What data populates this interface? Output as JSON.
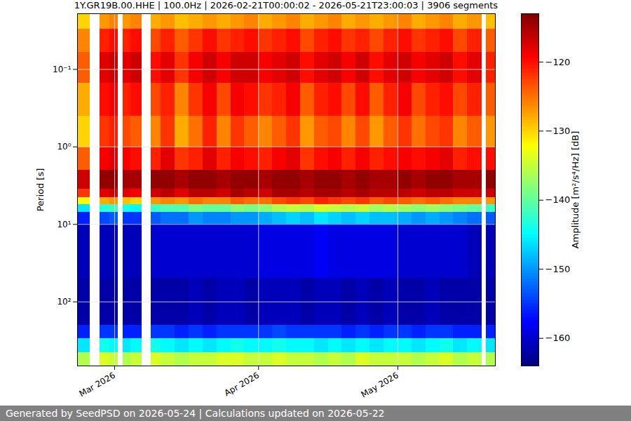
{
  "chart_data": {
    "type": "heatmap",
    "title": "1Y.GR19B.00.HHE | 100.0Hz | 2026-02-21T00:00:02 - 2026-05-21T23:00:03 | 3906 segments",
    "caption": "Generated by SeedPSD on 2026-05-24 | Calculations updated on 2026-05-22",
    "ylabel": "Period [s]",
    "log": "y",
    "grid": true,
    "xlim": [
      "2026-02-21T00:00:00Z",
      "2026-05-22T00:00:00Z"
    ],
    "xticks": [
      {
        "value": "2026-03-01T00:00:00Z",
        "label": "Mar 2026"
      },
      {
        "value": "2026-04-01T00:00:00Z",
        "label": "Apr 2026"
      },
      {
        "value": "2026-05-01T00:00:00Z",
        "label": "May 2026"
      }
    ],
    "ylim": [
      0.0191,
      671
    ],
    "yticks": [
      {
        "value": 0.1,
        "label": "10⁻¹"
      },
      {
        "value": 1,
        "label": "10⁰"
      },
      {
        "value": 10,
        "label": "10¹"
      },
      {
        "value": 100,
        "label": "10²"
      }
    ],
    "x_edges": [
      "2026-02-21T00:00:00Z",
      "2026-02-23T16:00:00Z",
      "2026-02-25T20:00:00Z",
      "2026-02-28T00:00:00Z",
      "2026-03-01T20:00:00Z",
      "2026-03-02T20:00:00Z",
      "2026-03-04T12:00:00Z",
      "2026-03-06T22:00:00Z",
      "2026-03-08T22:00:00Z",
      "2026-03-11T00:00:00Z",
      "2026-03-14T00:00:00Z",
      "2026-03-17T00:00:00Z",
      "2026-03-20T00:00:00Z",
      "2026-03-23T00:00:00Z",
      "2026-03-26T00:00:00Z",
      "2026-03-29T00:00:00Z",
      "2026-04-01T00:00:00Z",
      "2026-04-04T00:00:00Z",
      "2026-04-07T00:00:00Z",
      "2026-04-10T00:00:00Z",
      "2026-04-13T00:00:00Z",
      "2026-04-16T00:00:00Z",
      "2026-04-19T00:00:00Z",
      "2026-04-22T00:00:00Z",
      "2026-04-25T00:00:00Z",
      "2026-04-28T00:00:00Z",
      "2026-05-01T00:00:00Z",
      "2026-05-04T00:00:00Z",
      "2026-05-07T00:00:00Z",
      "2026-05-10T00:00:00Z",
      "2026-05-13T00:00:00Z",
      "2026-05-16T00:00:00Z",
      "2026-05-19T04:00:00Z",
      "2026-05-20T00:00:00Z",
      "2026-05-22T00:00:00Z"
    ],
    "y_edges": [
      0.0191,
      0.03,
      0.06,
      0.15,
      0.4,
      1.0,
      2.0,
      3.5,
      4.5,
      5.5,
      7,
      10,
      50,
      200,
      300,
      450,
      671
    ],
    "values": [
      [
        -130,
        -126,
        -124,
        -128,
        -130,
        -124,
        -117,
        -122,
        -132,
        -146,
        -156,
        -161,
        -162,
        -156,
        -146,
        -136
      ],
      null,
      [
        -127,
        -121,
        -118,
        -120,
        -122,
        -119,
        -114,
        -118,
        -128,
        -143,
        -154,
        -161,
        -162,
        -155,
        -144,
        -134
      ],
      [
        -126,
        -120,
        -117,
        -119,
        -121,
        -118,
        -114,
        -117,
        -127,
        -142,
        -153,
        -161,
        -162,
        -155,
        -145,
        -135
      ],
      null,
      [
        -127,
        -121,
        -118,
        -121,
        -123,
        -119,
        -115,
        -118,
        -129,
        -144,
        -155,
        -161,
        -162,
        -156,
        -146,
        -136
      ],
      [
        -126,
        -120,
        -117,
        -120,
        -124,
        -120,
        -115,
        -119,
        -130,
        -145,
        -155,
        -161,
        -162,
        -156,
        -145,
        -135
      ],
      null,
      [
        -128,
        -123,
        -120,
        -123,
        -126,
        -121,
        -114,
        -117,
        -127,
        -142,
        -153,
        -160,
        -162,
        -155,
        -144,
        -134
      ],
      [
        -127,
        -121,
        -118,
        -121,
        -122,
        -118,
        -114,
        -116,
        -126,
        -141,
        -152,
        -160,
        -162,
        -155,
        -145,
        -135
      ],
      [
        -129,
        -124,
        -122,
        -126,
        -128,
        -122,
        -115,
        -118,
        -127,
        -141,
        -152,
        -160,
        -162,
        -156,
        -146,
        -136
      ],
      [
        -128,
        -122,
        -119,
        -122,
        -125,
        -121,
        -114,
        -116,
        -125,
        -139,
        -150,
        -160,
        -161,
        -155,
        -145,
        -135
      ],
      [
        -127,
        -120,
        -117,
        -119,
        -121,
        -118,
        -114,
        -116,
        -126,
        -140,
        -151,
        -160,
        -162,
        -156,
        -146,
        -135
      ],
      [
        -128,
        -122,
        -119,
        -123,
        -126,
        -121,
        -115,
        -117,
        -126,
        -140,
        -151,
        -160,
        -161,
        -155,
        -145,
        -134
      ],
      [
        -127,
        -121,
        -117,
        -119,
        -122,
        -119,
        -114,
        -115,
        -124,
        -138,
        -150,
        -160,
        -161,
        -155,
        -144,
        -134
      ],
      [
        -126,
        -120,
        -117,
        -120,
        -124,
        -120,
        -114,
        -116,
        -125,
        -139,
        -150,
        -160,
        -162,
        -155,
        -145,
        -135
      ],
      [
        -128,
        -122,
        -119,
        -122,
        -126,
        -121,
        -115,
        -117,
        -125,
        -138,
        -149,
        -159,
        -161,
        -155,
        -145,
        -135
      ],
      [
        -127,
        -121,
        -118,
        -121,
        -124,
        -119,
        -114,
        -115,
        -123,
        -136,
        -148,
        -159,
        -161,
        -154,
        -144,
        -134
      ],
      [
        -126,
        -120,
        -117,
        -119,
        -122,
        -118,
        -114,
        -115,
        -122,
        -135,
        -147,
        -159,
        -161,
        -155,
        -145,
        -135
      ],
      [
        -128,
        -123,
        -120,
        -124,
        -127,
        -122,
        -115,
        -116,
        -123,
        -136,
        -148,
        -159,
        -162,
        -155,
        -145,
        -135
      ],
      [
        -127,
        -121,
        -118,
        -121,
        -124,
        -120,
        -114,
        -115,
        -121,
        -134,
        -146,
        -158,
        -161,
        -155,
        -146,
        -136
      ],
      [
        -126,
        -120,
        -117,
        -120,
        -123,
        -119,
        -114,
        -115,
        -122,
        -135,
        -147,
        -159,
        -161,
        -155,
        -145,
        -135
      ],
      [
        -128,
        -122,
        -119,
        -123,
        -126,
        -121,
        -115,
        -116,
        -123,
        -136,
        -148,
        -159,
        -162,
        -156,
        -146,
        -136
      ],
      [
        -127,
        -121,
        -117,
        -120,
        -123,
        -119,
        -114,
        -115,
        -122,
        -135,
        -147,
        -159,
        -161,
        -155,
        -145,
        -134
      ],
      [
        -128,
        -123,
        -120,
        -124,
        -127,
        -121,
        -115,
        -116,
        -124,
        -137,
        -148,
        -159,
        -162,
        -156,
        -146,
        -135
      ],
      [
        -127,
        -121,
        -118,
        -121,
        -124,
        -120,
        -115,
        -116,
        -123,
        -136,
        -148,
        -159,
        -161,
        -155,
        -145,
        -135
      ],
      [
        -126,
        -120,
        -117,
        -119,
        -122,
        -119,
        -114,
        -116,
        -124,
        -137,
        -149,
        -160,
        -162,
        -155,
        -145,
        -135
      ],
      [
        -128,
        -122,
        -119,
        -123,
        -125,
        -120,
        -115,
        -117,
        -125,
        -138,
        -150,
        -160,
        -162,
        -156,
        -146,
        -136
      ],
      [
        -127,
        -121,
        -118,
        -121,
        -123,
        -119,
        -114,
        -116,
        -124,
        -137,
        -149,
        -160,
        -161,
        -155,
        -145,
        -135
      ],
      [
        -126,
        -120,
        -117,
        -120,
        -122,
        -118,
        -114,
        -116,
        -125,
        -138,
        -150,
        -160,
        -162,
        -155,
        -144,
        -134
      ],
      [
        -128,
        -123,
        -120,
        -123,
        -126,
        -121,
        -115,
        -117,
        -126,
        -139,
        -151,
        -160,
        -162,
        -156,
        -146,
        -136
      ],
      [
        -127,
        -121,
        -118,
        -121,
        -124,
        -120,
        -115,
        -117,
        -126,
        -140,
        -152,
        -161,
        -162,
        -156,
        -145,
        -135
      ],
      null,
      [
        -129,
        -124,
        -121,
        -124,
        -127,
        -120,
        -114,
        -117,
        -127,
        -142,
        -153,
        -161,
        -162,
        -156,
        -146,
        -136
      ]
    ],
    "colorbar": {
      "label": "Amplitude [m²/s⁴/Hz] [dB]",
      "range": [
        -164,
        -113
      ],
      "ticks": [
        -160,
        -150,
        -140,
        -130,
        -120
      ]
    }
  }
}
